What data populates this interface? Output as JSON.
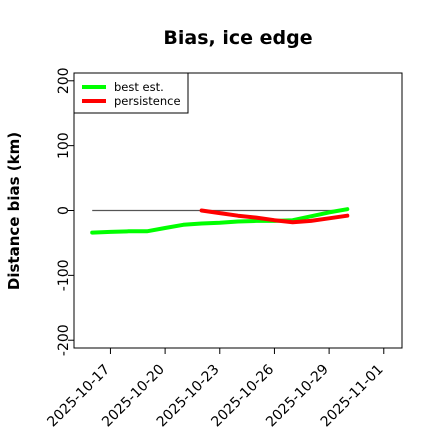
{
  "chart_data": {
    "type": "line",
    "title": "Bias, ice edge",
    "xlabel": "",
    "ylabel": "Distance bias (km)",
    "xlim": [
      "2025-10-15",
      "2025-11-02"
    ],
    "ylim": [
      -212,
      212
    ],
    "x_ticks": [
      "2025-10-17",
      "2025-10-20",
      "2025-10-23",
      "2025-10-26",
      "2025-10-29",
      "2025-11-01"
    ],
    "y_ticks": [
      -200,
      -100,
      0,
      100,
      200
    ],
    "reference_line": {
      "y": 0,
      "x_start": "2025-10-16",
      "x_end": "2025-10-30",
      "color": "#555555"
    },
    "legend": {
      "position": "top-left",
      "entries": [
        "best est.",
        "persistence"
      ]
    },
    "series": [
      {
        "name": "best est.",
        "color": "#00ff00",
        "points": [
          [
            "2025-10-16",
            -34
          ],
          [
            "2025-10-17",
            -33
          ],
          [
            "2025-10-18",
            -32
          ],
          [
            "2025-10-19",
            -32
          ],
          [
            "2025-10-20",
            -27
          ],
          [
            "2025-10-21",
            -22
          ],
          [
            "2025-10-22",
            -20
          ],
          [
            "2025-10-23",
            -19
          ],
          [
            "2025-10-24",
            -17
          ],
          [
            "2025-10-25",
            -16
          ],
          [
            "2025-10-26",
            -16
          ],
          [
            "2025-10-27",
            -15
          ],
          [
            "2025-10-28",
            -9
          ],
          [
            "2025-10-29",
            -3
          ],
          [
            "2025-10-30",
            2
          ]
        ]
      },
      {
        "name": "persistence",
        "color": "#ff0000",
        "points": [
          [
            "2025-10-22",
            0
          ],
          [
            "2025-10-23",
            -4
          ],
          [
            "2025-10-24",
            -8
          ],
          [
            "2025-10-25",
            -11
          ],
          [
            "2025-10-26",
            -15
          ],
          [
            "2025-10-27",
            -18
          ],
          [
            "2025-10-28",
            -16
          ],
          [
            "2025-10-29",
            -12
          ],
          [
            "2025-10-30",
            -8
          ]
        ]
      }
    ]
  }
}
